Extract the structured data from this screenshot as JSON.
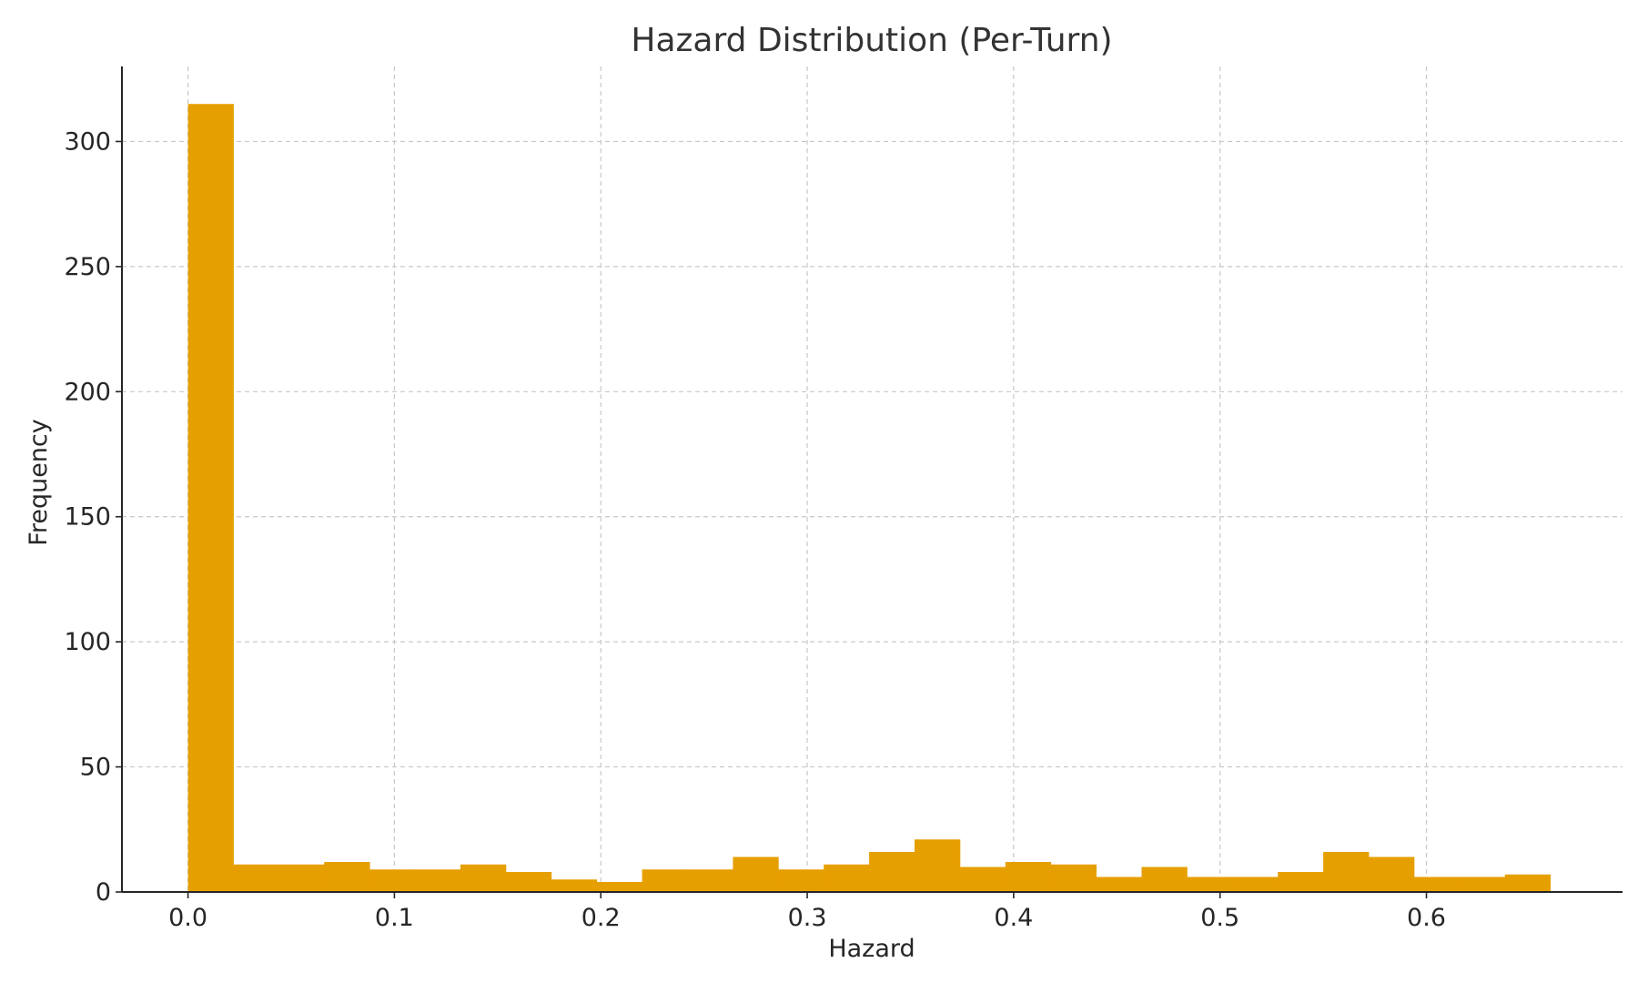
{
  "chart_data": {
    "type": "bar",
    "title": "Hazard Distribution (Per-Turn)",
    "xlabel": "Hazard",
    "ylabel": "Frequency",
    "xlim": [
      -0.032,
      0.695
    ],
    "ylim": [
      0,
      330
    ],
    "grid": true,
    "legend": "none",
    "bar_color": "#E69F00",
    "x_ticks": [
      {
        "value": 0.0,
        "label": "0.0"
      },
      {
        "value": 0.1,
        "label": "0.1"
      },
      {
        "value": 0.2,
        "label": "0.2"
      },
      {
        "value": 0.3,
        "label": "0.3"
      },
      {
        "value": 0.4,
        "label": "0.4"
      },
      {
        "value": 0.5,
        "label": "0.5"
      },
      {
        "value": 0.6,
        "label": "0.6"
      }
    ],
    "y_ticks": [
      {
        "value": 0,
        "label": "0"
      },
      {
        "value": 50,
        "label": "50"
      },
      {
        "value": 100,
        "label": "100"
      },
      {
        "value": 150,
        "label": "150"
      },
      {
        "value": 200,
        "label": "200"
      },
      {
        "value": 250,
        "label": "250"
      },
      {
        "value": 300,
        "label": "300"
      }
    ],
    "bin_start": 0.0,
    "bin_width": 0.022,
    "values": [
      315,
      11,
      11,
      12,
      9,
      9,
      11,
      8,
      5,
      4,
      9,
      9,
      14,
      9,
      11,
      16,
      21,
      10,
      12,
      11,
      6,
      10,
      6,
      6,
      8,
      16,
      14,
      6,
      6,
      7
    ]
  }
}
